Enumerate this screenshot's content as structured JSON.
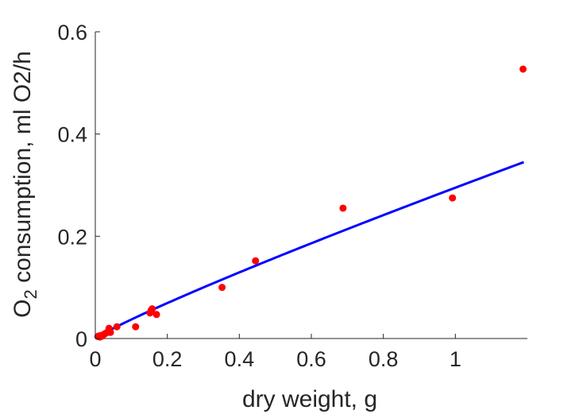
{
  "chart_data": {
    "type": "scatter",
    "xlabel": "dry weight, g",
    "ylabel": {
      "prefix": "O",
      "subscript": "2",
      "rest": " consumption, ml O2/h"
    },
    "xlim": [
      0,
      1.2
    ],
    "ylim": [
      0,
      0.6
    ],
    "xticks": [
      0,
      0.2,
      0.4,
      0.6,
      0.8,
      1
    ],
    "xtick_labels": [
      "0",
      "0.2",
      "0.4",
      "0.6",
      "0.8",
      "1"
    ],
    "yticks": [
      0,
      0.2,
      0.4,
      0.6
    ],
    "ytick_labels": [
      "0",
      "0.2",
      "0.4",
      "0.6"
    ],
    "grid": false,
    "series": [
      {
        "kind": "scatter",
        "color": "#ff0000",
        "points": [
          {
            "x": 0.007,
            "y": 0.004
          },
          {
            "x": 0.01,
            "y": 0.005
          },
          {
            "x": 0.013,
            "y": 0.003
          },
          {
            "x": 0.016,
            "y": 0.006
          },
          {
            "x": 0.02,
            "y": 0.005
          },
          {
            "x": 0.024,
            "y": 0.008
          },
          {
            "x": 0.028,
            "y": 0.01
          },
          {
            "x": 0.033,
            "y": 0.012
          },
          {
            "x": 0.038,
            "y": 0.02
          },
          {
            "x": 0.042,
            "y": 0.012
          },
          {
            "x": 0.06,
            "y": 0.023
          },
          {
            "x": 0.112,
            "y": 0.023
          },
          {
            "x": 0.152,
            "y": 0.05
          },
          {
            "x": 0.155,
            "y": 0.055
          },
          {
            "x": 0.158,
            "y": 0.058
          },
          {
            "x": 0.17,
            "y": 0.047
          },
          {
            "x": 0.352,
            "y": 0.1
          },
          {
            "x": 0.445,
            "y": 0.152
          },
          {
            "x": 0.688,
            "y": 0.255
          },
          {
            "x": 0.992,
            "y": 0.275
          },
          {
            "x": 1.188,
            "y": 0.527
          }
        ]
      },
      {
        "kind": "line",
        "color": "#0000ff",
        "fit": {
          "form": "power",
          "a": 0.295,
          "b": 0.9
        },
        "x_range": [
          0.005,
          1.19
        ]
      }
    ]
  }
}
